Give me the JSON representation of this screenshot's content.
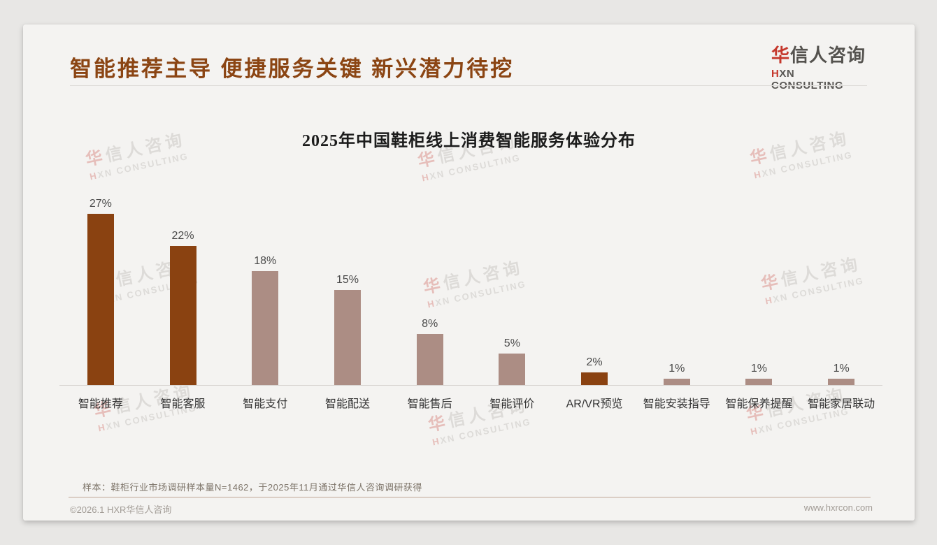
{
  "header": {
    "title": "智能推荐主导 便捷服务关键 新兴潜力待挖",
    "logo": {
      "cn_accent": "华",
      "cn_rest": "信人咨询",
      "en_accent": "H",
      "en_rest": "XN CONSULTING"
    }
  },
  "watermark": {
    "cn_accent": "华",
    "cn_rest": "信人咨询",
    "en_accent": "H",
    "en_rest": "XN CONSULTING"
  },
  "chart_data": {
    "type": "bar",
    "title": "2025年中国鞋柜线上消费智能服务体验分布",
    "categories": [
      "智能推荐",
      "智能客服",
      "智能支付",
      "智能配送",
      "智能售后",
      "智能评价",
      "AR/VR预览",
      "智能安装指导",
      "智能保养提醒",
      "智能家居联动"
    ],
    "values": [
      27,
      22,
      18,
      15,
      8,
      5,
      2,
      1,
      1,
      1
    ],
    "value_suffix": "%",
    "bar_palette": {
      "dark": "#8a4211",
      "light": "#AC8D84"
    },
    "bar_styles": [
      "dark",
      "dark",
      "light",
      "light",
      "light",
      "light",
      "dark",
      "light",
      "light",
      "light"
    ],
    "xlabel": "",
    "ylabel": "",
    "ylim": [
      0,
      30
    ],
    "grid": false,
    "legend": "none"
  },
  "footnote": {
    "sample_note": "样本：鞋柜行业市场调研样本量N=1462，于2025年11月通过华信人咨询调研获得"
  },
  "footer": {
    "copyright": "©2026.1 HXR华信人咨询",
    "website": "www.hxrcon.com"
  },
  "colors": {
    "accent_brown": "#8B4513",
    "bar_dark": "#8a4211",
    "bar_light": "#AC8D84",
    "logo_red": "#c5382c",
    "slide_background": "#f4f3f1",
    "page_background": "#e8e7e5"
  }
}
